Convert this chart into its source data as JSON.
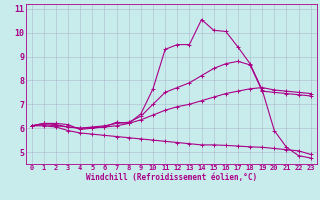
{
  "title": "",
  "xlabel": "Windchill (Refroidissement éolien,°C)",
  "ylabel": "",
  "xlim": [
    -0.5,
    23.5
  ],
  "ylim": [
    4.5,
    11.2
  ],
  "yticks": [
    5,
    6,
    7,
    8,
    9,
    10,
    11
  ],
  "xticks": [
    0,
    1,
    2,
    3,
    4,
    5,
    6,
    7,
    8,
    9,
    10,
    11,
    12,
    13,
    14,
    15,
    16,
    17,
    18,
    19,
    20,
    21,
    22,
    23
  ],
  "bg_color": "#c8ecec",
  "line_color": "#aa0088",
  "grid_color": "#aabbcc",
  "lines": [
    {
      "x": [
        0,
        1,
        2,
        3,
        4,
        5,
        6,
        7,
        8,
        9,
        10,
        11,
        12,
        13,
        14,
        15,
        16,
        17,
        18,
        19,
        20,
        21,
        22,
        23
      ],
      "y": [
        6.1,
        6.2,
        6.2,
        6.15,
        5.95,
        6.0,
        6.05,
        6.25,
        6.2,
        6.6,
        7.65,
        9.3,
        9.5,
        9.5,
        10.55,
        10.1,
        10.05,
        9.4,
        8.7,
        7.6,
        5.9,
        5.2,
        4.85,
        4.75
      ]
    },
    {
      "x": [
        0,
        1,
        2,
        3,
        4,
        5,
        6,
        7,
        8,
        9,
        10,
        11,
        12,
        13,
        14,
        15,
        16,
        17,
        18,
        19,
        20,
        21,
        22,
        23
      ],
      "y": [
        6.1,
        6.2,
        6.15,
        6.05,
        6.0,
        6.05,
        6.1,
        6.2,
        6.25,
        6.5,
        7.0,
        7.5,
        7.7,
        7.9,
        8.2,
        8.5,
        8.7,
        8.8,
        8.65,
        7.55,
        7.5,
        7.45,
        7.4,
        7.35
      ]
    },
    {
      "x": [
        0,
        1,
        2,
        3,
        4,
        5,
        6,
        7,
        8,
        9,
        10,
        11,
        12,
        13,
        14,
        15,
        16,
        17,
        18,
        19,
        20,
        21,
        22,
        23
      ],
      "y": [
        6.1,
        6.15,
        6.1,
        6.05,
        6.0,
        6.02,
        6.05,
        6.1,
        6.2,
        6.35,
        6.55,
        6.75,
        6.9,
        7.0,
        7.15,
        7.3,
        7.45,
        7.55,
        7.65,
        7.7,
        7.6,
        7.55,
        7.5,
        7.45
      ]
    },
    {
      "x": [
        0,
        1,
        2,
        3,
        4,
        5,
        6,
        7,
        8,
        9,
        10,
        11,
        12,
        13,
        14,
        15,
        16,
        17,
        18,
        19,
        20,
        21,
        22,
        23
      ],
      "y": [
        6.1,
        6.1,
        6.05,
        5.9,
        5.8,
        5.75,
        5.7,
        5.65,
        5.6,
        5.55,
        5.5,
        5.45,
        5.4,
        5.35,
        5.3,
        5.3,
        5.28,
        5.25,
        5.22,
        5.2,
        5.15,
        5.1,
        5.05,
        4.9
      ]
    }
  ]
}
